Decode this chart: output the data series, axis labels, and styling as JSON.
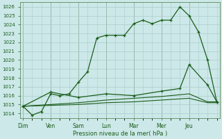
{
  "xlabel": "Pression niveau de la mer( hPa )",
  "background_color": "#cce8e8",
  "grid_color": "#aacccc",
  "line_color": "#1a5c1a",
  "tick_color": "#1a5c1a",
  "axis_color": "#5a8a5a",
  "ylim": [
    1013.5,
    1026.5
  ],
  "yticks": [
    1014,
    1015,
    1016,
    1017,
    1018,
    1019,
    1020,
    1021,
    1022,
    1023,
    1024,
    1025,
    1026
  ],
  "day_labels": [
    "Dim",
    "Ven",
    "Sam",
    "Lun",
    "Mar",
    "Mer",
    "Jeu"
  ],
  "day_positions": [
    0,
    3,
    6,
    9,
    12,
    15,
    18
  ],
  "xlim": [
    -0.3,
    21.3
  ],
  "line1_x": [
    0,
    1,
    2,
    3,
    4,
    5,
    6,
    7,
    8,
    9,
    10,
    11,
    12,
    13,
    14,
    15,
    16,
    17,
    18,
    19,
    20,
    21
  ],
  "line1_y": [
    1014.8,
    1013.8,
    1014.2,
    1016.2,
    1016.0,
    1016.2,
    1017.5,
    1018.7,
    1022.5,
    1022.8,
    1022.8,
    1022.8,
    1024.1,
    1024.5,
    1024.1,
    1024.5,
    1024.5,
    1026.0,
    1025.0,
    1023.2,
    1020.0,
    1015.3
  ],
  "line2_x": [
    0,
    3,
    6,
    9,
    12,
    15,
    17,
    18,
    20,
    21
  ],
  "line2_y": [
    1014.8,
    1016.4,
    1015.8,
    1016.2,
    1016.0,
    1016.5,
    1016.8,
    1019.5,
    1017.2,
    1015.3
  ],
  "line3_x": [
    0,
    3,
    6,
    9,
    12,
    15,
    18,
    20,
    21
  ],
  "line3_y": [
    1014.8,
    1015.0,
    1015.2,
    1015.5,
    1015.7,
    1015.9,
    1016.2,
    1015.3,
    1015.3
  ],
  "line4_x": [
    0,
    3,
    6,
    9,
    12,
    15,
    18,
    20,
    21
  ],
  "line4_y": [
    1014.8,
    1014.9,
    1015.0,
    1015.2,
    1015.3,
    1015.5,
    1015.7,
    1015.2,
    1015.2
  ]
}
